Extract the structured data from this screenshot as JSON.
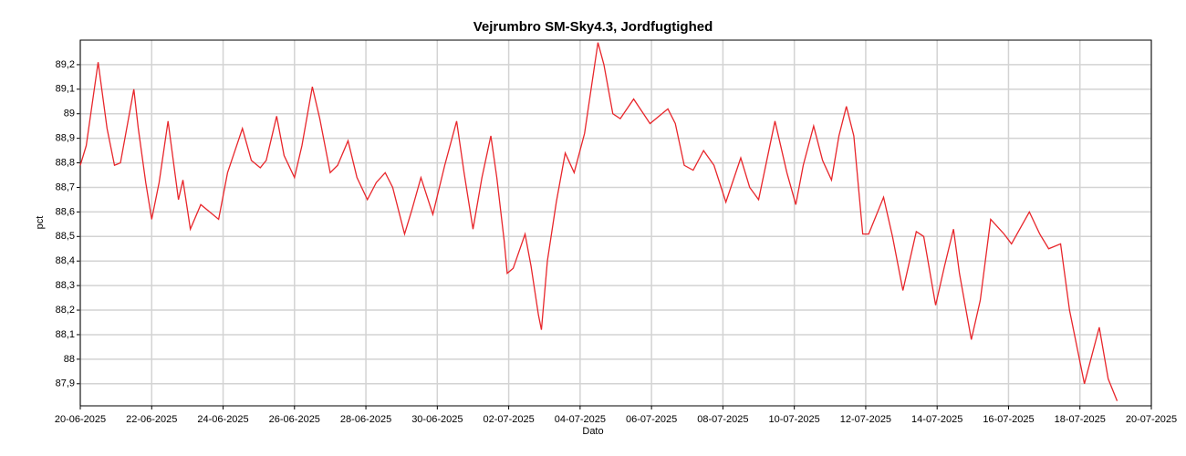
{
  "chart_data": {
    "type": "line",
    "title": "Vejrumbro SM-Sky4.3, Jordfugtighed",
    "x_label": "Dato",
    "y_label": "pct",
    "grid": true,
    "xlim": [
      "2025-06-20",
      "2025-07-20"
    ],
    "xticks": [
      {
        "value": "2025-06-20",
        "label": "20-06-2025"
      },
      {
        "value": "2025-06-22",
        "label": "22-06-2025"
      },
      {
        "value": "2025-06-24",
        "label": "24-06-2025"
      },
      {
        "value": "2025-06-26",
        "label": "26-06-2025"
      },
      {
        "value": "2025-06-28",
        "label": "28-06-2025"
      },
      {
        "value": "2025-06-30",
        "label": "30-06-2025"
      },
      {
        "value": "2025-07-02",
        "label": "02-07-2025"
      },
      {
        "value": "2025-07-04",
        "label": "04-07-2025"
      },
      {
        "value": "2025-07-06",
        "label": "06-07-2025"
      },
      {
        "value": "2025-07-08",
        "label": "08-07-2025"
      },
      {
        "value": "2025-07-10",
        "label": "10-07-2025"
      },
      {
        "value": "2025-07-12",
        "label": "12-07-2025"
      },
      {
        "value": "2025-07-14",
        "label": "14-07-2025"
      },
      {
        "value": "2025-07-16",
        "label": "16-07-2025"
      },
      {
        "value": "2025-07-18",
        "label": "18-07-2025"
      },
      {
        "value": "2025-07-20",
        "label": "20-07-2025"
      }
    ],
    "ylim": [
      87.81,
      89.3
    ],
    "yticks": [
      {
        "value": 87.9,
        "label": "87,9"
      },
      88,
      {
        "value": 88.1,
        "label": "88,1"
      },
      {
        "value": 88.2,
        "label": "88,2"
      },
      {
        "value": 88.3,
        "label": "88,3"
      },
      {
        "value": 88.4,
        "label": "88,4"
      },
      {
        "value": 88.5,
        "label": "88,5"
      },
      {
        "value": 88.6,
        "label": "88,6"
      },
      {
        "value": 88.7,
        "label": "88,7"
      },
      {
        "value": 88.8,
        "label": "88,8"
      },
      {
        "value": 88.9,
        "label": "88,9"
      },
      89,
      {
        "value": 89.1,
        "label": "89,1"
      },
      {
        "value": 89.2,
        "label": "89,2"
      }
    ],
    "x": [
      "2025-06-20T00:00",
      "2025-06-20T04:00",
      "2025-06-20T12:00",
      "2025-06-20T18:00",
      "2025-06-20T23:00",
      "2025-06-21T03:00",
      "2025-06-21T12:00",
      "2025-06-21T15:00",
      "2025-06-21T20:00",
      "2025-06-22T00:00",
      "2025-06-22T05:00",
      "2025-06-22T11:00",
      "2025-06-22T18:00",
      "2025-06-22T21:00",
      "2025-06-23T02:00",
      "2025-06-23T09:00",
      "2025-06-23T15:00",
      "2025-06-23T21:00",
      "2025-06-24T03:00",
      "2025-06-24T13:00",
      "2025-06-24T19:00",
      "2025-06-25T01:00",
      "2025-06-25T05:00",
      "2025-06-25T12:00",
      "2025-06-25T17:00",
      "2025-06-26T00:00",
      "2025-06-26T05:00",
      "2025-06-26T12:00",
      "2025-06-26T17:00",
      "2025-06-27T00:00",
      "2025-06-27T05:00",
      "2025-06-27T12:00",
      "2025-06-27T18:00",
      "2025-06-28T01:00",
      "2025-06-28T07:00",
      "2025-06-28T13:00",
      "2025-06-28T18:00",
      "2025-06-29T02:00",
      "2025-06-29T07:00",
      "2025-06-29T13:00",
      "2025-06-29T21:00",
      "2025-06-30T05:00",
      "2025-06-30T13:00",
      "2025-06-30T18:00",
      "2025-07-01T00:00",
      "2025-07-01T06:00",
      "2025-07-01T12:00",
      "2025-07-01T16:00",
      "2025-07-01T21:00",
      "2025-07-01T23:00",
      "2025-07-02T03:00",
      "2025-07-02T11:00",
      "2025-07-02T15:00",
      "2025-07-02T20:00",
      "2025-07-02T22:00",
      "2025-07-03T02:00",
      "2025-07-03T08:00",
      "2025-07-03T14:00",
      "2025-07-03T20:00",
      "2025-07-04T03:00",
      "2025-07-04T12:00",
      "2025-07-04T16:00",
      "2025-07-04T22:00",
      "2025-07-05T03:00",
      "2025-07-05T12:00",
      "2025-07-05T23:00",
      "2025-07-06T11:00",
      "2025-07-06T16:00",
      "2025-07-06T22:00",
      "2025-07-07T04:00",
      "2025-07-07T11:00",
      "2025-07-07T18:00",
      "2025-07-08T02:00",
      "2025-07-08T12:00",
      "2025-07-08T18:00",
      "2025-07-09T00:00",
      "2025-07-09T11:00",
      "2025-07-09T19:00",
      "2025-07-10T01:00",
      "2025-07-10T06:00",
      "2025-07-10T13:00",
      "2025-07-10T19:00",
      "2025-07-11T01:00",
      "2025-07-11T06:00",
      "2025-07-11T11:00",
      "2025-07-11T16:00",
      "2025-07-11T22:00",
      "2025-07-12T02:00",
      "2025-07-12T12:00",
      "2025-07-12T18:00",
      "2025-07-13T01:00",
      "2025-07-13T10:00",
      "2025-07-13T15:00",
      "2025-07-13T23:00",
      "2025-07-14T05:00",
      "2025-07-14T11:00",
      "2025-07-14T15:00",
      "2025-07-14T23:00",
      "2025-07-15T05:00",
      "2025-07-15T12:00",
      "2025-07-15T21:00",
      "2025-07-16T02:00",
      "2025-07-16T14:00",
      "2025-07-16T21:00",
      "2025-07-17T03:00",
      "2025-07-17T11:00",
      "2025-07-17T17:00",
      "2025-07-18T03:00",
      "2025-07-18T13:00",
      "2025-07-18T19:00",
      "2025-07-19T01:00"
    ],
    "series": [
      {
        "color": "#e8262b",
        "values": [
          88.79,
          88.87,
          89.21,
          88.94,
          88.79,
          88.8,
          89.1,
          88.94,
          88.72,
          88.57,
          88.72,
          88.97,
          88.65,
          88.73,
          88.53,
          88.63,
          88.6,
          88.57,
          88.76,
          88.94,
          88.81,
          88.78,
          88.81,
          88.99,
          88.83,
          88.74,
          88.87,
          89.11,
          88.98,
          88.76,
          88.79,
          88.89,
          88.74,
          88.65,
          88.72,
          88.76,
          88.7,
          88.51,
          88.61,
          88.74,
          88.59,
          88.79,
          88.97,
          88.76,
          88.53,
          88.74,
          88.91,
          88.74,
          88.48,
          88.35,
          88.37,
          88.51,
          88.38,
          88.18,
          88.12,
          88.4,
          88.64,
          88.84,
          88.76,
          88.92,
          89.29,
          89.2,
          89.0,
          88.98,
          89.06,
          88.96,
          89.02,
          88.96,
          88.79,
          88.77,
          88.85,
          88.79,
          88.64,
          88.82,
          88.7,
          88.65,
          88.97,
          88.76,
          88.63,
          88.79,
          88.95,
          88.81,
          88.73,
          88.91,
          89.03,
          88.91,
          88.51,
          88.51,
          88.66,
          88.5,
          88.28,
          88.52,
          88.5,
          88.22,
          88.38,
          88.53,
          88.35,
          88.08,
          88.24,
          88.57,
          88.51,
          88.47,
          88.6,
          88.51,
          88.45,
          88.47,
          88.2,
          87.9,
          88.13,
          87.92,
          87.83
        ]
      }
    ]
  }
}
